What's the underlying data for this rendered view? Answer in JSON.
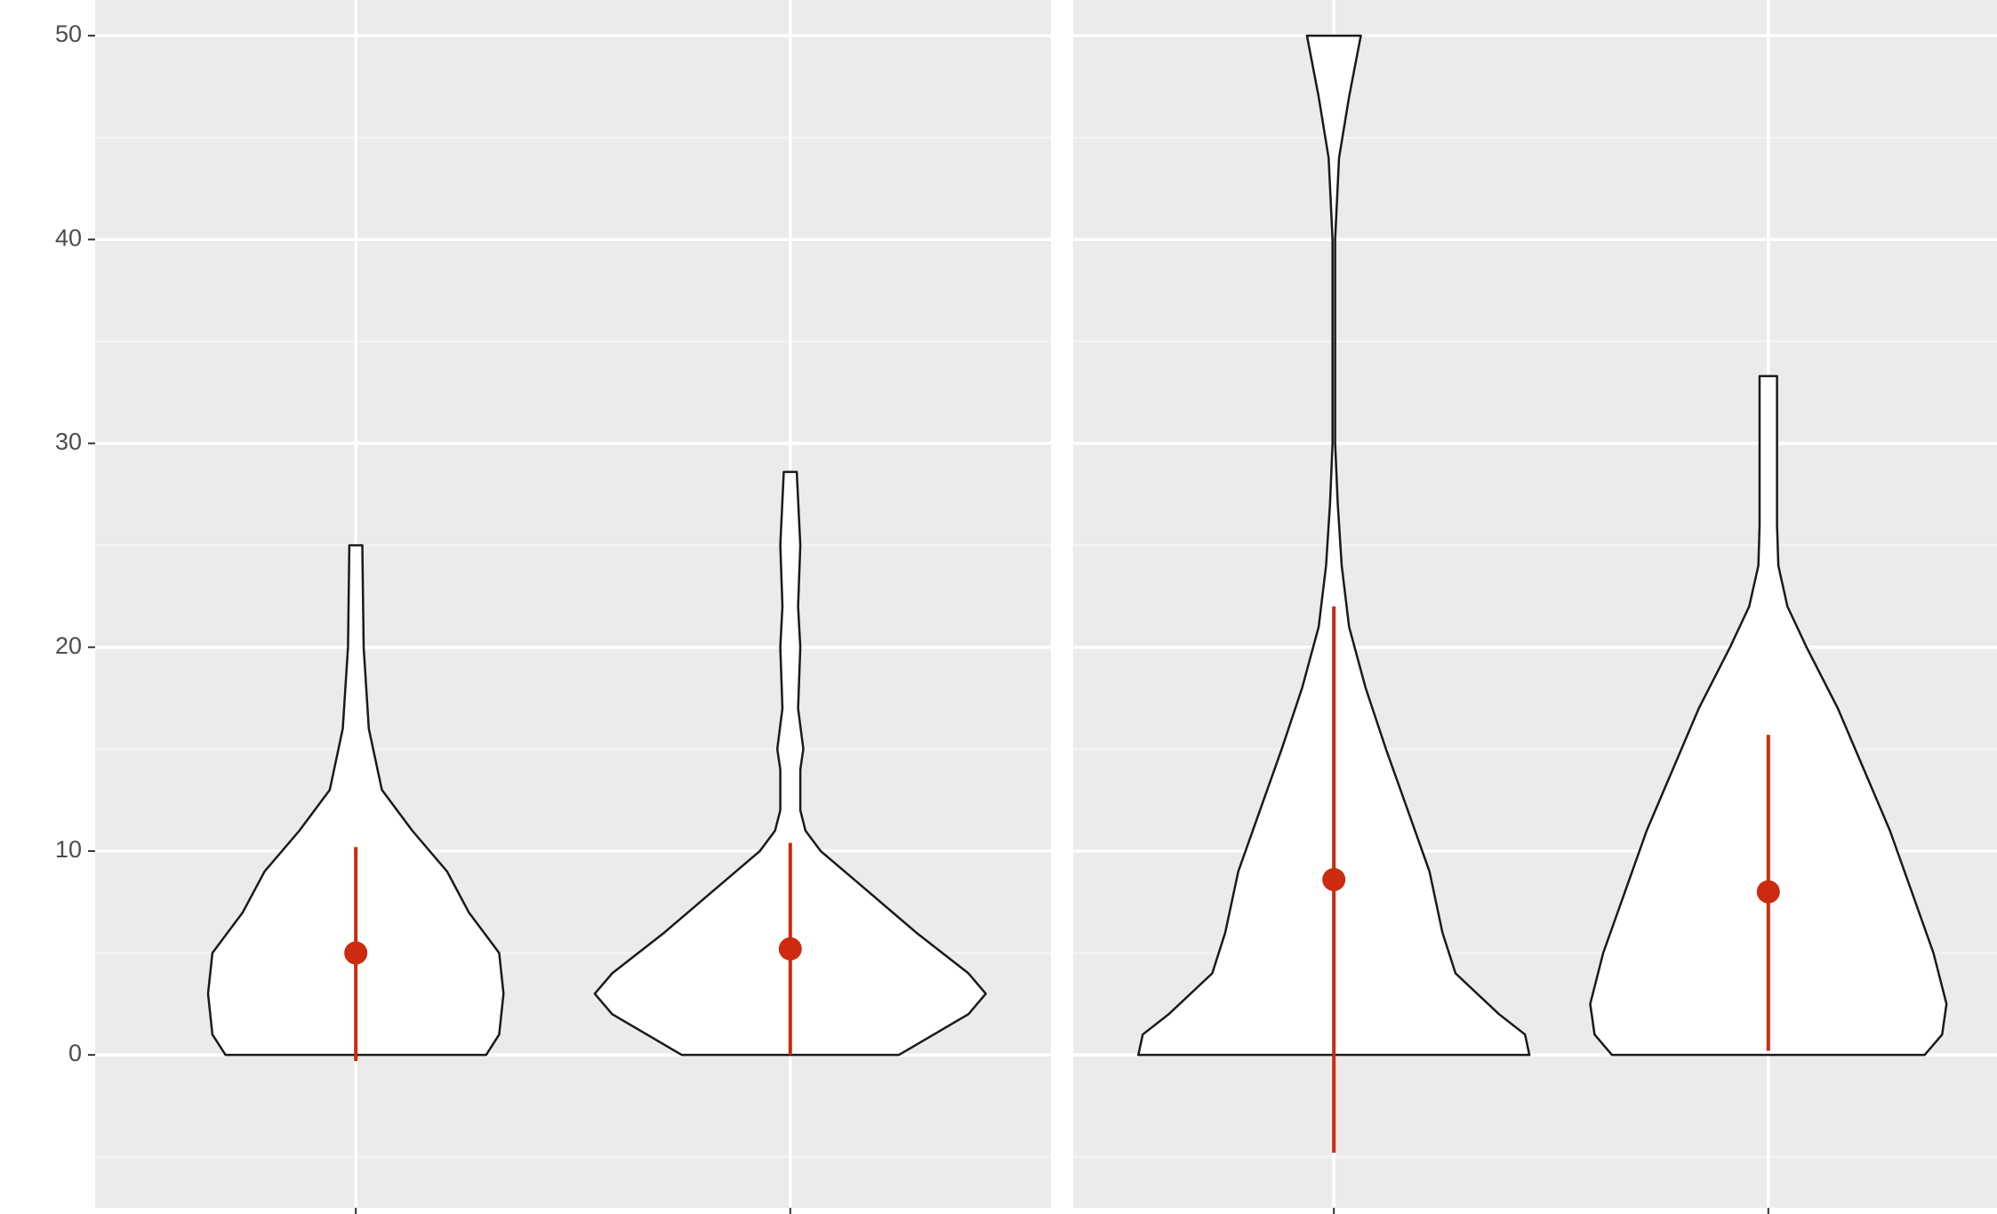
{
  "chart_data": {
    "type": "violin",
    "ylim": [
      -7.5,
      51.75
    ],
    "yticks": [
      0,
      10,
      20,
      30,
      40,
      50
    ],
    "minor_yticks": [
      -5,
      5,
      15,
      25,
      35,
      45
    ],
    "xlim": [
      0.4,
      2.6
    ],
    "grid": true,
    "fill": "#ffffff",
    "outline": "#1a1a1a",
    "point_color": "#cc2b10",
    "panels": [
      {
        "categories": [
          null,
          null
        ],
        "violins": [
          {
            "y": [
              0,
              1,
              3,
              5,
              7,
              9,
              11,
              13,
              16,
              20,
              25
            ],
            "halfwidth": [
              0.3,
              0.33,
              0.34,
              0.33,
              0.26,
              0.21,
              0.13,
              0.06,
              0.03,
              0.018,
              0.015
            ],
            "mean": 5,
            "lower": -0.3,
            "upper": 10.2
          },
          {
            "y": [
              0,
              2,
              3,
              4,
              6,
              8,
              10,
              11,
              12,
              14,
              15,
              17,
              20,
              22,
              25,
              28.6
            ],
            "halfwidth": [
              0.25,
              0.41,
              0.45,
              0.41,
              0.29,
              0.18,
              0.07,
              0.035,
              0.023,
              0.023,
              0.03,
              0.018,
              0.023,
              0.018,
              0.023,
              0.015
            ],
            "mean": 5.2,
            "lower": 0,
            "upper": 10.4
          }
        ]
      },
      {
        "categories": [
          null,
          null
        ],
        "violins": [
          {
            "y": [
              0,
              1,
              2,
              4,
              6,
              9,
              12,
              15,
              18,
              21,
              24,
              27,
              30,
              35,
              40,
              44,
              47,
              50
            ],
            "halfwidth": [
              0.45,
              0.44,
              0.38,
              0.28,
              0.25,
              0.22,
              0.17,
              0.12,
              0.073,
              0.035,
              0.018,
              0.009,
              0.003,
              0.003,
              0.003,
              0.012,
              0.035,
              0.062
            ],
            "mean": 8.6,
            "lower": -4.8,
            "upper": 22
          },
          {
            "y": [
              0,
              1,
              2.5,
              5,
              8,
              11,
              14,
              17,
              20,
              22,
              24,
              26,
              30,
              33.3
            ],
            "halfwidth": [
              0.36,
              0.4,
              0.41,
              0.38,
              0.33,
              0.28,
              0.22,
              0.16,
              0.088,
              0.044,
              0.023,
              0.02,
              0.02,
              0.02
            ],
            "mean": 8,
            "lower": 0.2,
            "upper": 15.7
          }
        ]
      }
    ]
  }
}
